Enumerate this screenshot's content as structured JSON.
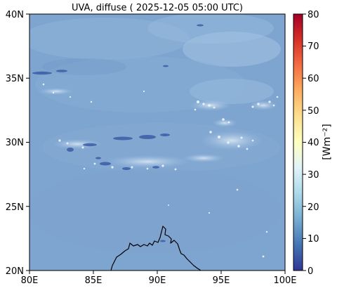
{
  "map": {
    "title": "UVA, diffuse ( 2025-12-05 05:00 UTC)",
    "x_ticks": [
      "80E",
      "85E",
      "90E",
      "95E",
      "100E"
    ],
    "y_ticks": [
      "40N",
      "35N",
      "30N",
      "25N",
      "20N"
    ],
    "extent": {
      "lon": [
        80,
        100
      ],
      "lat": [
        20,
        40
      ]
    }
  },
  "colorbar": {
    "label": "[Wm⁻²]",
    "ticks": [
      "0",
      "10",
      "20",
      "30",
      "40",
      "50",
      "60",
      "70",
      "80"
    ],
    "range": [
      0,
      80
    ],
    "colors": [
      "#313695",
      "#4575b4",
      "#74add1",
      "#abd9e9",
      "#e0f3f8",
      "#ffffbf",
      "#fee090",
      "#fdae61",
      "#f46d43",
      "#d73027",
      "#a50026"
    ]
  },
  "field": {
    "background_color": "#7fa6d0",
    "typical_value_range": [
      12,
      18
    ]
  }
}
